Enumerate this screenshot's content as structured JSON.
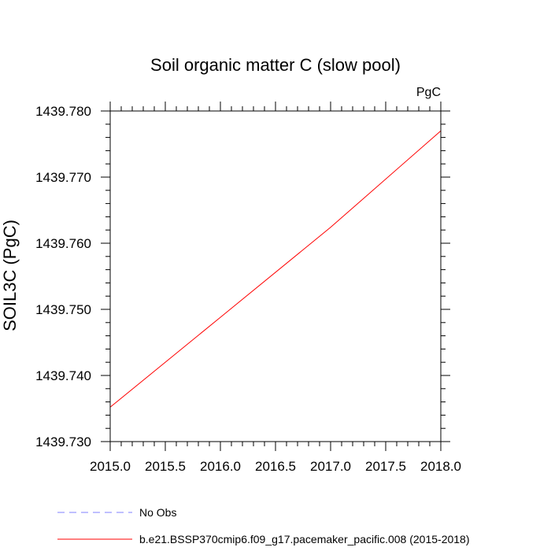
{
  "chart_data": {
    "type": "line",
    "title": "Soil organic matter C (slow pool)",
    "units_label": "PgC",
    "ylabel": "SOIL3C  (PgC)",
    "xlabel": "",
    "xlim": [
      2015.0,
      2018.0
    ],
    "ylim": [
      1439.73,
      1439.78
    ],
    "x_ticks": [
      2015.0,
      2015.5,
      2016.0,
      2016.5,
      2017.0,
      2017.5,
      2018.0
    ],
    "x_tick_labels": [
      "2015.0",
      "2015.5",
      "2016.0",
      "2016.5",
      "2017.0",
      "2017.5",
      "2018.0"
    ],
    "y_ticks": [
      1439.73,
      1439.74,
      1439.75,
      1439.76,
      1439.77,
      1439.78
    ],
    "y_tick_labels": [
      "1439.730",
      "1439.740",
      "1439.750",
      "1439.760",
      "1439.770",
      "1439.780"
    ],
    "series": [
      {
        "name": "b.e21.BSSP370cmip6.f09_g17.pacemaker_pacific.008 (2015-2018)",
        "color": "#ff0000",
        "dash": "solid",
        "x": [
          2015.0,
          2016.0,
          2017.0,
          2018.0
        ],
        "y": [
          1439.7352,
          1439.7488,
          1439.7624,
          1439.777
        ]
      }
    ],
    "legend": [
      {
        "label": "No Obs",
        "color": "#8080ff",
        "dash": "dashed"
      },
      {
        "label": "b.e21.BSSP370cmip6.f09_g17.pacemaker_pacific.008 (2015-2018)",
        "color": "#ff0000",
        "dash": "solid"
      }
    ],
    "legend_position": "bottom",
    "grid": false
  }
}
